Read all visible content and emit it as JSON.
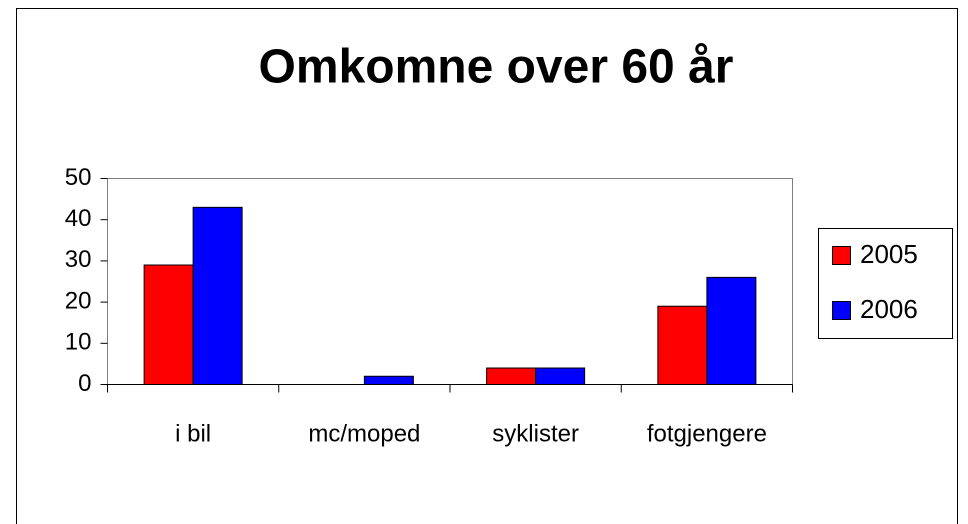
{
  "chart_data": {
    "type": "bar",
    "title": "Omkomne over 60 år",
    "categories": [
      "i bil",
      "mc/moped",
      "syklister",
      "fotgjengere"
    ],
    "series": [
      {
        "name": "2005",
        "color": "#ff0000",
        "values": [
          29,
          0,
          4,
          19
        ]
      },
      {
        "name": "2006",
        "color": "#0000ff",
        "values": [
          43,
          2,
          4,
          26
        ]
      }
    ],
    "ylim": [
      0,
      50
    ],
    "yticks": [
      0,
      10,
      20,
      30,
      40,
      50
    ],
    "grid": false,
    "legend": "right"
  }
}
